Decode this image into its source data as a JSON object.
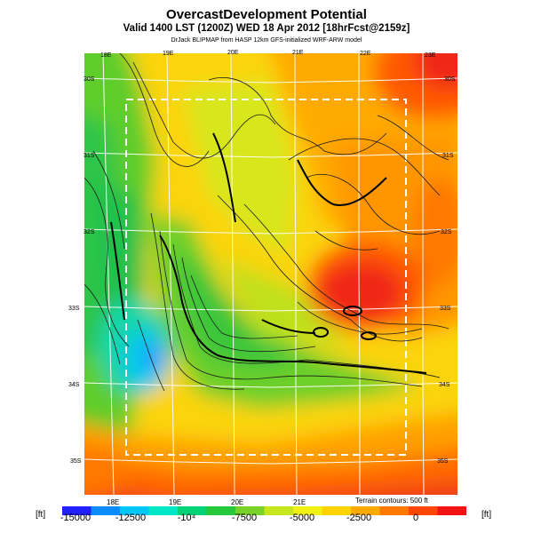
{
  "header": {
    "title": "OvercastDevelopment Potential",
    "valid_line": "Valid 1400 LST (1200Z) WED 18 Apr 2012 [18hrFcst@2159z]",
    "credit_line": "DrJack BLIPMAP from HASP 12km GFS-initialized WRF-ARW model"
  },
  "map": {
    "lon_top": [
      "18E",
      "19E",
      "20E",
      "21E",
      "22E",
      "23E"
    ],
    "lon_bottom": [
      "18E",
      "19E",
      "20E",
      "21E"
    ],
    "lat_left": [
      "30S",
      "31S",
      "32S",
      "33S",
      "34S",
      "35S"
    ],
    "lat_right": [
      "30S",
      "31S",
      "32S",
      "33S",
      "34S",
      "35S"
    ],
    "terrain_note": "Terrain contours: 500 ft"
  },
  "colorbar": {
    "unit": "[ft]",
    "ticks": [
      "-15000",
      "-12500",
      "-10⁴",
      "-7500",
      "-5000",
      "-2500",
      "0"
    ],
    "colors": [
      "#2020ff",
      "#0a8cff",
      "#00c8ff",
      "#00e6c8",
      "#00d278",
      "#28c83c",
      "#78d228",
      "#c8e61e",
      "#f0f014",
      "#ffd200",
      "#ffaa00",
      "#ff7800",
      "#ff4600",
      "#f01414"
    ]
  }
}
